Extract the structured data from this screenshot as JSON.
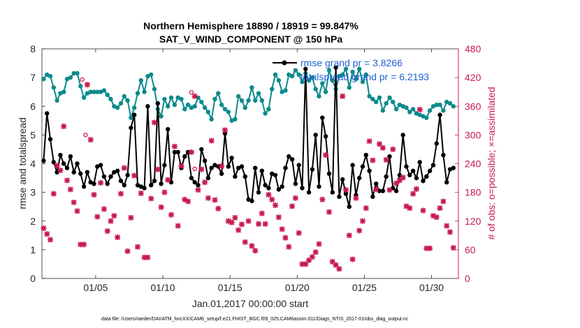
{
  "chart_data": {
    "type": "line",
    "title": "Northern Hemisphere 18890 / 18919 = 99.847%",
    "subtitle": "SAT_V_WIND_COMPONENT @ 150 hPa",
    "xlabel": "Jan.01,2017 00:00:00 start",
    "ylabel": "rmse and totalspread",
    "y2label": "# of obs: o=possible; ×=assimilated",
    "footnote": "data file: /Users/raeder/DAI/ATM_forcXX/CAM6_setup/f.e21.FHIST_BGC.f09_025.CAM6assim.011/Diags_NTrS_2017-01/obs_diag_output.nc",
    "xlim": [
      1,
      32
    ],
    "ylim": [
      0,
      8
    ],
    "y2lim": [
      0,
      480
    ],
    "x_ticks": [
      5,
      10,
      15,
      20,
      25,
      30
    ],
    "x_tick_labels": [
      "01/05",
      "01/10",
      "01/15",
      "01/20",
      "01/25",
      "01/30"
    ],
    "y_ticks": [
      0,
      1,
      2,
      3,
      4,
      5,
      6,
      7,
      8
    ],
    "y2_ticks": [
      0,
      60,
      120,
      180,
      240,
      300,
      360,
      420,
      480
    ],
    "legend": [
      {
        "label": "rmse grand pr = 3.8266",
        "color": "#000000",
        "marker": "circle"
      },
      {
        "label": "totalspread grand pr = 6.2193",
        "color": "#0c8a8a",
        "marker": "circle"
      }
    ],
    "series": [
      {
        "name": "rmse",
        "axis": "left",
        "color": "#000000",
        "x": [
          1.125,
          1.375,
          1.625,
          1.875,
          2.125,
          2.375,
          2.625,
          2.875,
          3.125,
          3.375,
          3.625,
          3.875,
          4.125,
          4.375,
          4.625,
          4.875,
          5.125,
          5.375,
          5.625,
          5.875,
          6.125,
          6.375,
          6.625,
          6.875,
          7.125,
          7.375,
          7.625,
          7.875,
          8.125,
          8.375,
          8.625,
          8.875,
          9.125,
          9.375,
          9.625,
          9.875,
          10.125,
          10.375,
          10.625,
          10.875,
          11.125,
          11.375,
          11.625,
          11.875,
          12.125,
          12.375,
          12.625,
          12.875,
          13.125,
          13.375,
          13.625,
          13.875,
          14.125,
          14.375,
          14.625,
          14.875,
          15.125,
          15.375,
          15.625,
          15.875,
          16.125,
          16.375,
          16.625,
          16.875,
          17.125,
          17.375,
          17.625,
          17.875,
          18.125,
          18.375,
          18.625,
          18.875,
          19.125,
          19.375,
          19.625,
          19.875,
          20.125,
          20.375,
          20.625,
          20.875,
          21.125,
          21.375,
          21.625,
          21.875,
          22.125,
          22.375,
          22.625,
          22.875,
          23.125,
          23.375,
          23.625,
          23.875,
          24.125,
          24.375,
          24.625,
          24.875,
          25.125,
          25.375,
          25.625,
          25.875,
          26.125,
          26.375,
          26.625,
          26.875,
          27.125,
          27.375,
          27.625,
          27.875,
          28.125,
          28.375,
          28.625,
          28.875,
          29.125,
          29.375,
          29.625,
          29.875,
          30.125,
          30.375,
          30.625,
          30.875,
          31.125,
          31.375,
          31.625
        ],
        "values": [
          4.1,
          5.75,
          4.85,
          4.05,
          3.7,
          4.3,
          4.0,
          3.85,
          4.25,
          3.7,
          4.0,
          3.65,
          3.2,
          3.7,
          3.35,
          3.3,
          3.9,
          3.95,
          3.55,
          3.3,
          3.55,
          3.7,
          3.75,
          3.4,
          3.25,
          3.6,
          5.25,
          5.7,
          3.25,
          3.2,
          3.15,
          6.0,
          3.25,
          3.4,
          6.1,
          3.3,
          3.95,
          5.2,
          3.35,
          4.4,
          4.4,
          3.85,
          4.25,
          4.4,
          3.5,
          3.35,
          3.25,
          4.5,
          4.1,
          3.5,
          3.85,
          3.95,
          3.9,
          3.65,
          5.05,
          3.9,
          4.2,
          3.55,
          3.85,
          3.9,
          3.55,
          2.75,
          2.7,
          3.85,
          3.0,
          3.75,
          3.25,
          3.15,
          3.65,
          3.6,
          3.1,
          3.2,
          3.85,
          4.25,
          4.15,
          3.3,
          3.95,
          3.15,
          7.3,
          3.0,
          3.8,
          5.0,
          3.2,
          5.6,
          4.95,
          3.65,
          3.0,
          7.35,
          2.85,
          3.45,
          2.95,
          2.5,
          3.95,
          2.9,
          3.5,
          3.9,
          4.3,
          3.75,
          2.85,
          3.3,
          3.05,
          3.05,
          3.55,
          4.25,
          3.15,
          3.05,
          3.6,
          5.0,
          3.9,
          3.6,
          3.75,
          3.5,
          4.05,
          3.4,
          3.55,
          3.75,
          3.95,
          4.7,
          5.7,
          4.3,
          3.35,
          3.8,
          3.85
        ]
      },
      {
        "name": "totalspread",
        "axis": "left",
        "color": "#0c8a8a",
        "x": [
          1.125,
          1.375,
          1.625,
          1.875,
          2.125,
          2.375,
          2.625,
          2.875,
          3.125,
          3.375,
          3.625,
          3.875,
          4.125,
          4.375,
          4.625,
          4.875,
          5.125,
          5.375,
          5.625,
          5.875,
          6.125,
          6.375,
          6.625,
          6.875,
          7.125,
          7.375,
          7.625,
          7.875,
          8.125,
          8.375,
          8.625,
          8.875,
          9.125,
          9.375,
          9.625,
          9.875,
          10.125,
          10.375,
          10.625,
          10.875,
          11.125,
          11.375,
          11.625,
          11.875,
          12.125,
          12.375,
          12.625,
          12.875,
          13.125,
          13.375,
          13.625,
          13.875,
          14.125,
          14.375,
          14.625,
          14.875,
          15.125,
          15.375,
          15.625,
          15.875,
          16.125,
          16.375,
          16.625,
          16.875,
          17.125,
          17.375,
          17.625,
          17.875,
          18.125,
          18.375,
          18.625,
          18.875,
          19.125,
          19.375,
          19.625,
          19.875,
          20.125,
          20.375,
          20.625,
          20.875,
          21.125,
          21.375,
          21.625,
          21.875,
          22.125,
          22.375,
          22.625,
          22.875,
          23.125,
          23.375,
          23.625,
          23.875,
          24.125,
          24.375,
          24.625,
          24.875,
          25.125,
          25.375,
          25.625,
          25.875,
          26.125,
          26.375,
          26.625,
          26.875,
          27.125,
          27.375,
          27.625,
          27.875,
          28.125,
          28.375,
          28.625,
          28.875,
          29.125,
          29.375,
          29.625,
          29.875,
          30.125,
          30.375,
          30.625,
          30.875,
          31.125,
          31.375,
          31.625
        ],
        "values": [
          6.95,
          7.1,
          7.05,
          6.65,
          6.2,
          6.45,
          6.5,
          6.95,
          7.0,
          7.15,
          7.15,
          6.7,
          6.3,
          6.45,
          6.5,
          6.5,
          6.5,
          6.5,
          6.55,
          6.4,
          6.25,
          6.0,
          5.95,
          6.1,
          6.35,
          6.2,
          5.6,
          5.95,
          6.45,
          6.9,
          6.5,
          7.05,
          7.1,
          6.6,
          5.9,
          5.65,
          6.25,
          6.0,
          6.3,
          6.05,
          6.3,
          6.25,
          5.9,
          6.05,
          5.95,
          6.0,
          6.3,
          6.15,
          5.95,
          5.8,
          5.55,
          6.25,
          6.45,
          6.05,
          5.9,
          5.8,
          5.5,
          5.55,
          6.35,
          6.2,
          5.95,
          6.2,
          6.65,
          6.2,
          6.45,
          6.2,
          5.75,
          5.9,
          6.6,
          7.1,
          6.9,
          6.5,
          6.55,
          7.1,
          7.05,
          7.25,
          7.1,
          6.85,
          7.15,
          6.9,
          7.0,
          6.6,
          6.35,
          6.8,
          6.5,
          7.25,
          6.9,
          6.6,
          7.05,
          7.1,
          7.3,
          6.65,
          7.2,
          6.95,
          7.3,
          6.85,
          7.1,
          6.35,
          6.25,
          6.15,
          6.3,
          5.85,
          6.1,
          6.3,
          6.15,
          5.9,
          6.05,
          6.0,
          5.95,
          5.8,
          5.9,
          5.75,
          5.7,
          5.65,
          5.6,
          5.85,
          6.0,
          6.05,
          6.05,
          5.85,
          6.15,
          6.1,
          6.0
        ]
      }
    ],
    "obs_possible": {
      "axis": "right",
      "color": "#c8194e",
      "x": [
        4.0,
        4.25,
        12.125,
        12.375
      ],
      "values": [
        416,
        300,
        389,
        229
      ]
    },
    "obs_assimilated": {
      "axis": "right",
      "color": "#c8194e",
      "x": [
        1.125,
        1.375,
        1.625,
        1.875,
        2.125,
        2.375,
        2.625,
        2.875,
        3.125,
        3.375,
        3.625,
        3.875,
        4.125,
        4.375,
        4.625,
        4.875,
        5.125,
        5.375,
        5.625,
        5.875,
        6.125,
        6.375,
        6.625,
        6.875,
        7.125,
        7.375,
        7.625,
        7.875,
        8.125,
        8.375,
        8.625,
        8.875,
        9.125,
        9.375,
        9.625,
        9.875,
        10.125,
        10.375,
        10.625,
        10.875,
        11.125,
        11.375,
        11.625,
        11.875,
        12.125,
        12.375,
        12.625,
        12.875,
        13.125,
        13.375,
        13.625,
        13.875,
        14.125,
        14.375,
        14.625,
        14.875,
        15.125,
        15.375,
        15.625,
        15.875,
        16.125,
        16.375,
        16.625,
        16.875,
        17.125,
        17.375,
        17.625,
        17.875,
        18.125,
        18.375,
        18.625,
        18.875,
        19.125,
        19.375,
        19.625,
        19.875,
        20.125,
        20.375,
        20.625,
        20.875,
        21.125,
        21.375,
        21.625,
        21.875,
        22.125,
        22.375,
        22.625,
        22.875,
        23.125,
        23.375,
        23.625,
        23.875,
        24.125,
        24.375,
        24.625,
        24.875,
        25.125,
        25.375,
        25.625,
        25.875,
        26.125,
        26.375,
        26.625,
        26.875,
        27.125,
        27.375,
        27.625,
        27.875,
        28.125,
        28.375,
        28.625,
        28.875,
        29.125,
        29.375,
        29.625,
        29.875,
        30.125,
        30.375,
        30.625,
        30.875,
        31.125,
        31.375,
        31.625
      ],
      "values": [
        105,
        93,
        81,
        177,
        236,
        226,
        318,
        205,
        186,
        159,
        141,
        71,
        71,
        405,
        290,
        175,
        129,
        200,
        145,
        99,
        120,
        131,
        86,
        177,
        231,
        57,
        127,
        215,
        66,
        178,
        44,
        44,
        167,
        326,
        228,
        149,
        180,
        206,
        133,
        276,
        110,
        235,
        165,
        161,
        264,
        381,
        185,
        228,
        201,
        168,
        288,
        164,
        146,
        235,
        310,
        120,
        117,
        127,
        101,
        113,
        76,
        120,
        68,
        58,
        114,
        136,
        114,
        175,
        165,
        153,
        128,
        103,
        85,
        66,
        151,
        168,
        95,
        30,
        30,
        38,
        45,
        55,
        72,
        165,
        258,
        139,
        35,
        28,
        20,
        381,
        185,
        90,
        40,
        168,
        100,
        120,
        147,
        287,
        247,
        186,
        281,
        273,
        248,
        185,
        270,
        199,
        205,
        211,
        151,
        147,
        177,
        187,
        353,
        142,
        63,
        63,
        131,
        128,
        147,
        161,
        110,
        97,
        64
      ]
    }
  }
}
